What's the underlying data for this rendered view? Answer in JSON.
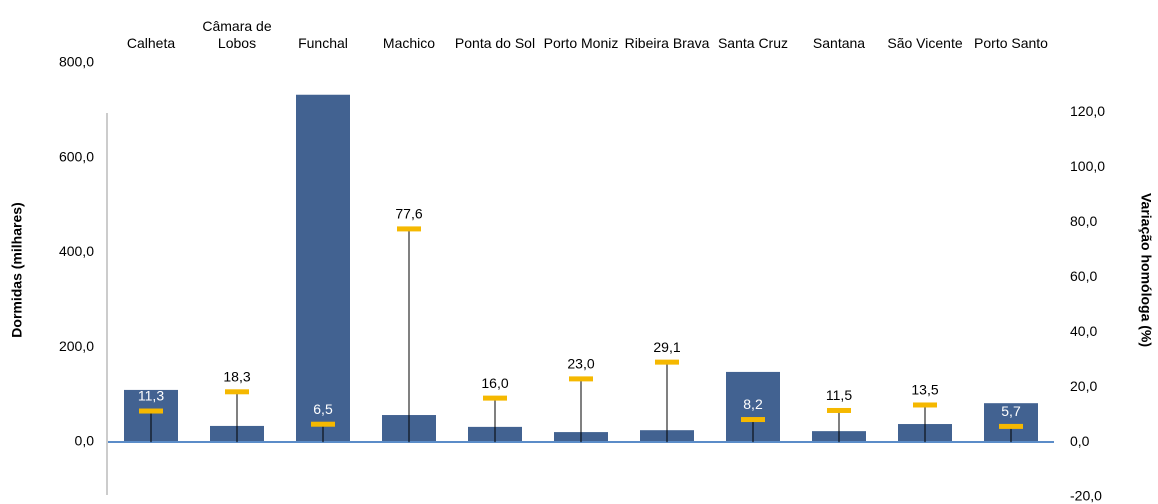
{
  "chart_data": {
    "type": "bar_line",
    "categories": [
      "Calheta",
      "Câmara de Lobos",
      "Funchal",
      "Machico",
      "Ponta do Sol",
      "Porto Moniz",
      "Ribeira Brava",
      "Santa Cruz",
      "Santana",
      "São Vicente",
      "Porto Santo"
    ],
    "ylabel": "Dormidas (milhares)",
    "y2label": "Variação homóloga (%)",
    "ylim": [
      -116,
      800
    ],
    "yticks": [
      {
        "value": 0,
        "label": "0,0"
      },
      {
        "value": 200,
        "label": "200,0"
      },
      {
        "value": 400,
        "label": "400,0"
      },
      {
        "value": 600,
        "label": "600,0"
      },
      {
        "value": 800,
        "label": "800,0"
      }
    ],
    "y2lim": [
      -20,
      138
    ],
    "y2ticks": [
      {
        "value": -20,
        "label": "-20,0"
      },
      {
        "value": 0,
        "label": "0,0"
      },
      {
        "value": 20,
        "label": "20,0"
      },
      {
        "value": 40,
        "label": "40,0"
      },
      {
        "value": 60,
        "label": "60,0"
      },
      {
        "value": 80,
        "label": "80,0"
      },
      {
        "value": 100,
        "label": "100,0"
      },
      {
        "value": 120,
        "label": "120,0"
      }
    ],
    "series": [
      {
        "type": "bar",
        "color": "#426291",
        "values": [
          110,
          34,
          733,
          57,
          32,
          21,
          25,
          148,
          23,
          38,
          82
        ]
      },
      {
        "type": "marker",
        "axis": "y2",
        "color": "#f5b800",
        "values": [
          11.3,
          18.3,
          6.5,
          77.6,
          16.0,
          23.0,
          29.1,
          8.2,
          11.5,
          13.5,
          5.7
        ],
        "value_labels": [
          "11,3",
          "18,3",
          "6,5",
          "77,6",
          "16,0",
          "23,0",
          "29,1",
          "8,2",
          "11,5",
          "13,5",
          "5,7"
        ]
      }
    ]
  }
}
